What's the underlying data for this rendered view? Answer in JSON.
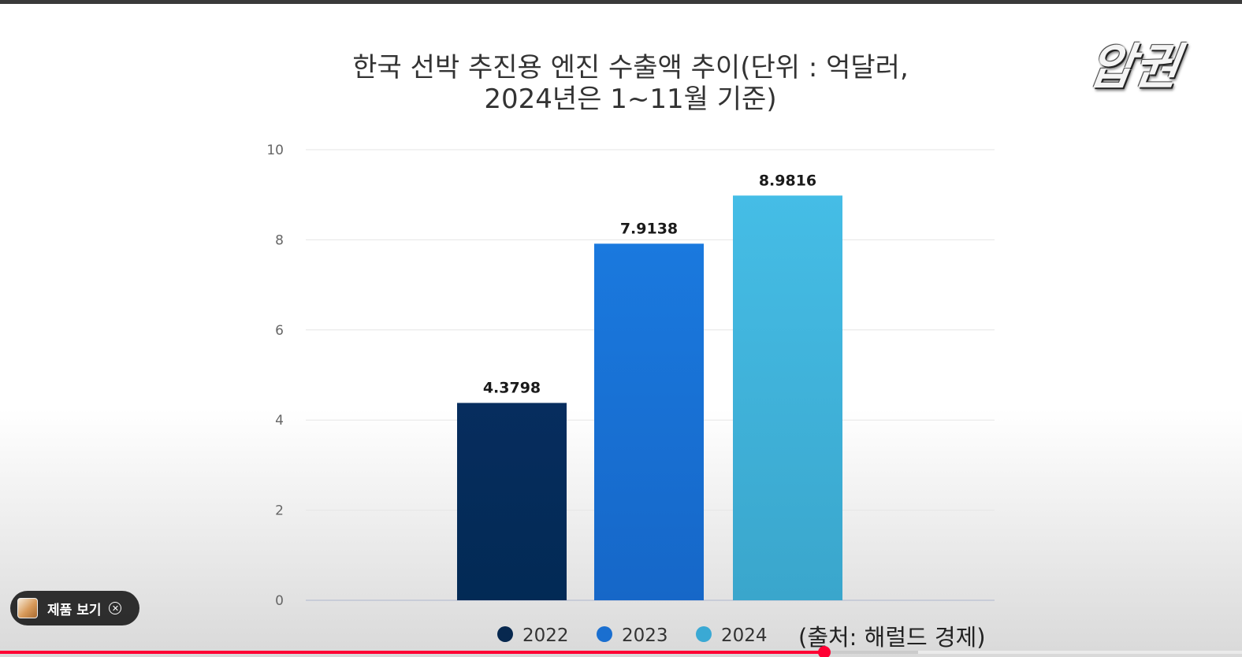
{
  "watermark": "압권",
  "chart_data": {
    "type": "bar",
    "title_line1": "한국 선박 추진용 엔진 수출액 추이(단위 : 억달러,",
    "title_line2": "2024년은 1~11월 기준)",
    "categories": [
      "2022",
      "2023",
      "2024"
    ],
    "values": [
      4.3798,
      7.9138,
      8.9816
    ],
    "value_labels": [
      "4.3798",
      "7.9138",
      "8.9816"
    ],
    "colors": [
      "#072d5e",
      "#1a79de",
      "#45bde6"
    ],
    "legend_colors": [
      "#07284f",
      "#1a6fd0",
      "#3aa9d4"
    ],
    "ylim": [
      0,
      10
    ],
    "yticks": [
      0,
      2,
      4,
      6,
      8,
      10
    ],
    "grid": true,
    "legend_position": "bottom-center",
    "legend": [
      "2022",
      "2023",
      "2024"
    ],
    "source_note": "(출처: 해럴드 경제)"
  },
  "product_chip": {
    "label": "제품 보기",
    "thumb_icon": "product-thumbnail",
    "close_icon": "close-circle-icon"
  },
  "player": {
    "progress_played_fraction": 0.664
  }
}
